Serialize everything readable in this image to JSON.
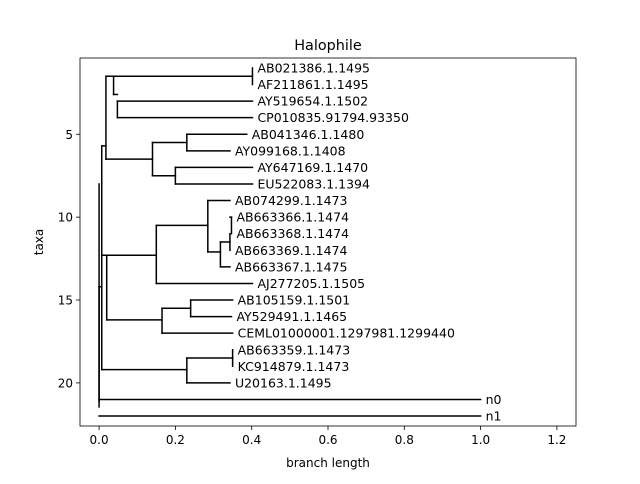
{
  "chart_data": {
    "type": "tree",
    "title": "Halophile",
    "xlabel": "branch length",
    "ylabel": "taxa",
    "xlim": [
      -0.05,
      1.25
    ],
    "ylim": [
      22.6,
      0.4
    ],
    "xticks": [
      0.0,
      0.2,
      0.4,
      0.6,
      0.8,
      1.0,
      1.2
    ],
    "xtick_labels": [
      "0.0",
      "0.2",
      "0.4",
      "0.6",
      "0.8",
      "1.0",
      "1.2"
    ],
    "yticks": [
      5,
      10,
      15,
      20
    ],
    "ytick_labels": [
      "5",
      "10",
      "15",
      "20"
    ],
    "grid": false,
    "leaves": [
      {
        "label": "AB021386.1.1495",
        "y": 1,
        "x": 0.402
      },
      {
        "label": "AF211861.1.1495",
        "y": 2,
        "x": 0.402
      },
      {
        "label": "AY519654.1.1502",
        "y": 3,
        "x": 0.402
      },
      {
        "label": "CP010835.91794.93350",
        "y": 4,
        "x": 0.402
      },
      {
        "label": "AB041346.1.1480",
        "y": 5,
        "x": 0.387
      },
      {
        "label": "AY099168.1.1408",
        "y": 6,
        "x": 0.343
      },
      {
        "label": "AY647169.1.1470",
        "y": 7,
        "x": 0.402
      },
      {
        "label": "EU522083.1.1394",
        "y": 8,
        "x": 0.402
      },
      {
        "label": "AB074299.1.1473",
        "y": 9,
        "x": 0.343
      },
      {
        "label": "AB663366.1.1474",
        "y": 10,
        "x": 0.347
      },
      {
        "label": "AB663368.1.1474",
        "y": 11,
        "x": 0.347
      },
      {
        "label": "AB663369.1.1474",
        "y": 12,
        "x": 0.343
      },
      {
        "label": "AB663367.1.1475",
        "y": 13,
        "x": 0.343
      },
      {
        "label": "AJ277205.1.1505",
        "y": 14,
        "x": 0.402
      },
      {
        "label": "AB105159.1.1501",
        "y": 15,
        "x": 0.35
      },
      {
        "label": "AY529491.1.1465",
        "y": 16,
        "x": 0.347
      },
      {
        "label": "CEML01000001.1297981.1299440",
        "y": 17,
        "x": 0.35
      },
      {
        "label": "AB663359.1.1473",
        "y": 18,
        "x": 0.35
      },
      {
        "label": "KC914879.1.1473",
        "y": 19,
        "x": 0.35
      },
      {
        "label": "U20163.1.1495",
        "y": 20,
        "x": 0.343
      },
      {
        "label": "n0",
        "y": 21,
        "x": 1.0
      },
      {
        "label": "n1",
        "y": 22,
        "x": 1.0
      }
    ],
    "segments": [
      [
        0.0,
        14.2,
        0.0,
        21.45
      ],
      [
        0.0,
        8.0,
        0.0,
        21.1
      ],
      [
        0.0,
        21.0,
        1.0,
        21.0
      ],
      [
        0.0,
        22.0,
        1.0,
        22.0
      ],
      [
        0.0,
        14.2,
        0.007,
        14.2
      ],
      [
        0.007,
        5.7,
        0.007,
        19.2
      ],
      [
        0.007,
        5.7,
        0.018,
        5.7
      ],
      [
        0.018,
        1.5,
        0.018,
        6.5
      ],
      [
        0.018,
        1.5,
        0.038,
        1.5
      ],
      [
        0.038,
        1.5,
        0.038,
        2.6
      ],
      [
        0.038,
        1.5,
        0.402,
        1.5
      ],
      [
        0.402,
        1.0,
        0.402,
        2.0
      ],
      [
        0.038,
        2.6,
        0.048,
        2.6
      ],
      [
        0.048,
        3.0,
        0.048,
        4.0
      ],
      [
        0.048,
        3.0,
        0.402,
        3.0
      ],
      [
        0.048,
        4.0,
        0.402,
        4.0
      ],
      [
        0.018,
        6.5,
        0.14,
        6.5
      ],
      [
        0.14,
        5.5,
        0.14,
        7.5
      ],
      [
        0.14,
        5.5,
        0.23,
        5.5
      ],
      [
        0.23,
        5.0,
        0.23,
        6.0
      ],
      [
        0.23,
        5.0,
        0.387,
        5.0
      ],
      [
        0.23,
        6.0,
        0.343,
        6.0
      ],
      [
        0.14,
        7.5,
        0.2,
        7.5
      ],
      [
        0.2,
        7.0,
        0.2,
        8.0
      ],
      [
        0.2,
        7.0,
        0.402,
        7.0
      ],
      [
        0.2,
        8.0,
        0.402,
        8.0
      ],
      [
        0.007,
        12.3,
        0.02,
        12.3
      ],
      [
        0.02,
        12.3,
        0.02,
        16.2
      ],
      [
        0.02,
        12.3,
        0.15,
        12.3
      ],
      [
        0.15,
        10.5,
        0.15,
        14.0
      ],
      [
        0.15,
        10.5,
        0.285,
        10.5
      ],
      [
        0.285,
        9.0,
        0.285,
        12.1
      ],
      [
        0.285,
        9.0,
        0.343,
        9.0
      ],
      [
        0.285,
        12.1,
        0.318,
        12.1
      ],
      [
        0.318,
        11.5,
        0.318,
        13.0
      ],
      [
        0.318,
        11.5,
        0.343,
        11.5
      ],
      [
        0.343,
        11.0,
        0.343,
        12.0
      ],
      [
        0.318,
        13.0,
        0.343,
        13.0
      ],
      [
        0.343,
        10.0,
        0.347,
        10.0
      ],
      [
        0.347,
        10.0,
        0.347,
        11.0
      ],
      [
        0.15,
        14.0,
        0.402,
        14.0
      ],
      [
        0.02,
        16.2,
        0.165,
        16.2
      ],
      [
        0.165,
        15.5,
        0.165,
        17.0
      ],
      [
        0.165,
        15.5,
        0.24,
        15.5
      ],
      [
        0.24,
        15.0,
        0.24,
        16.0
      ],
      [
        0.24,
        15.0,
        0.35,
        15.0
      ],
      [
        0.24,
        16.0,
        0.347,
        16.0
      ],
      [
        0.165,
        17.0,
        0.35,
        17.0
      ],
      [
        0.007,
        19.2,
        0.23,
        19.2
      ],
      [
        0.23,
        18.5,
        0.23,
        20.0
      ],
      [
        0.23,
        18.5,
        0.35,
        18.5
      ],
      [
        0.35,
        18.0,
        0.35,
        19.0
      ],
      [
        0.23,
        20.0,
        0.343,
        20.0
      ]
    ]
  }
}
